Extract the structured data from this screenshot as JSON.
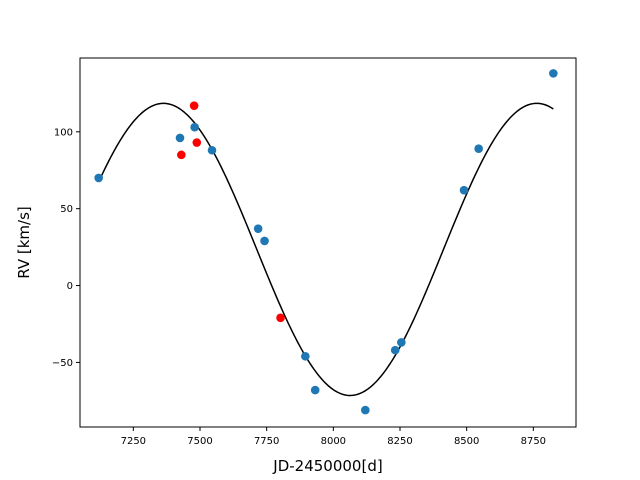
{
  "chart_data": {
    "type": "scatter",
    "title": "",
    "xlabel": "JD-2450000[d]",
    "ylabel": "RV [km/s]",
    "xlim": [
      7050,
      8910
    ],
    "ylim": [
      -92,
      148
    ],
    "xticks": [
      7250,
      7500,
      7750,
      8000,
      8250,
      8500,
      8750
    ],
    "yticks": [
      -50,
      0,
      50,
      100
    ],
    "grid": false,
    "legend": "none",
    "colors": {
      "series_a": "#1f77b4",
      "series_b": "#ff0000",
      "fit": "#000000"
    },
    "series": [
      {
        "color": "#1f77b4",
        "x": [
          7120,
          7425,
          7480,
          7545,
          7718,
          7742,
          7895,
          7932,
          8120,
          8232,
          8255,
          8490,
          8545,
          8825
        ],
        "y": [
          70,
          96,
          103,
          88,
          37,
          29,
          -46,
          -68,
          -81,
          -42,
          -37,
          62,
          89,
          138
        ]
      },
      {
        "color": "#ff0000",
        "x": [
          7430,
          7478,
          7488,
          7802
        ],
        "y": [
          85,
          117,
          93,
          -21
        ]
      }
    ],
    "fit": {
      "type": "line",
      "color": "#000000",
      "x_range": [
        7120,
        8825
      ],
      "mean": 23.5,
      "amplitude": 95,
      "period": 1400,
      "peak_x": 7363
    }
  }
}
